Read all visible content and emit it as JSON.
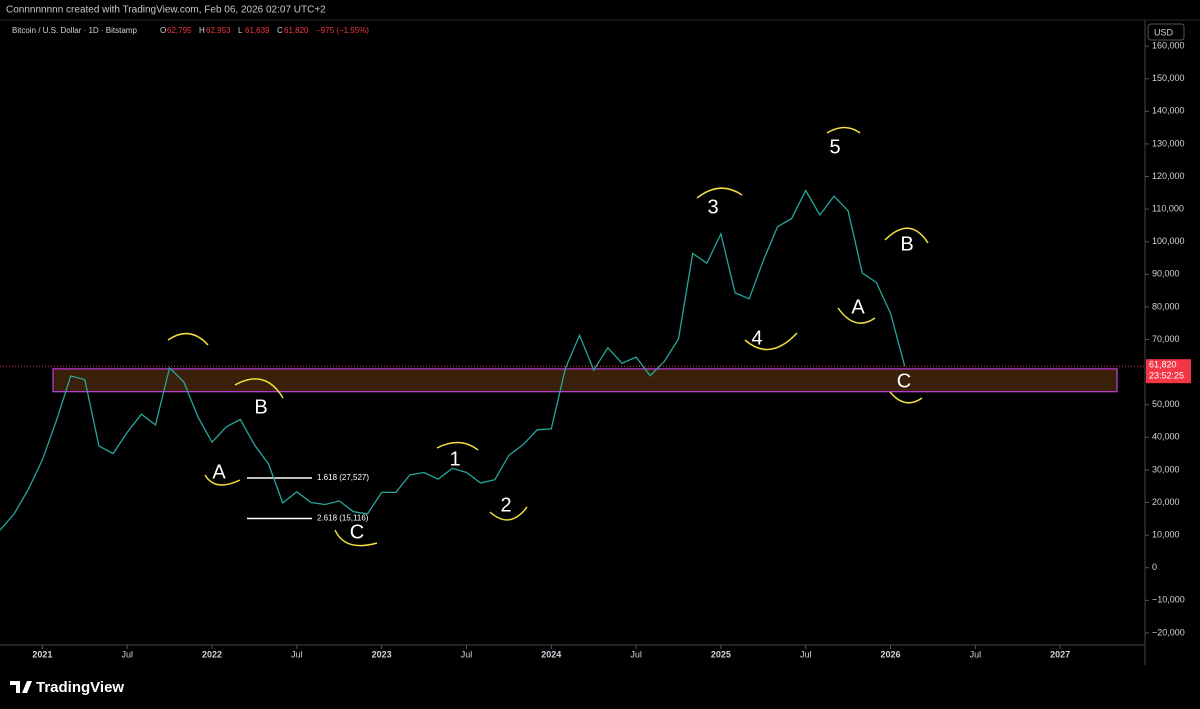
{
  "header": {
    "credit": "Connnnnnnn created with TradingView.com, Feb 06, 2026 02:07 UTC+2"
  },
  "chart_data": {
    "type": "line",
    "symbol": "Bitcoin / U.S. Dollar · 1D · Bitstamp",
    "ohlc": [
      {
        "key": "O",
        "value": "62,795"
      },
      {
        "key": "H",
        "value": "62,953"
      },
      {
        "key": "L",
        "value": "61,639"
      },
      {
        "key": "C",
        "value": "61,820"
      }
    ],
    "change": "−975 (−1.55%)",
    "currency": "USD",
    "x": [
      "2020-10",
      "2020-11",
      "2020-12",
      "2021-01",
      "2021-02",
      "2021-03",
      "2021-04",
      "2021-05",
      "2021-06",
      "2021-07",
      "2021-08",
      "2021-09",
      "2021-10",
      "2021-11",
      "2021-12",
      "2022-01",
      "2022-02",
      "2022-03",
      "2022-04",
      "2022-05",
      "2022-06",
      "2022-07",
      "2022-08",
      "2022-09",
      "2022-10",
      "2022-11",
      "2022-12",
      "2023-01",
      "2023-02",
      "2023-03",
      "2023-04",
      "2023-05",
      "2023-06",
      "2023-07",
      "2023-08",
      "2023-09",
      "2023-10",
      "2023-11",
      "2023-12",
      "2024-01",
      "2024-02",
      "2024-03",
      "2024-04",
      "2024-05",
      "2024-06",
      "2024-07",
      "2024-08",
      "2024-09",
      "2024-10",
      "2024-11",
      "2024-12",
      "2025-01",
      "2025-02",
      "2025-03",
      "2025-04",
      "2025-05",
      "2025-06",
      "2025-07",
      "2025-08",
      "2025-09",
      "2025-10",
      "2025-11",
      "2025-12",
      "2026-01",
      "2026-02"
    ],
    "series": [
      {
        "name": "Bitcoin / U.S. Dollar",
        "color": "#26a69a",
        "values": [
          11500,
          16500,
          24000,
          33100,
          45200,
          58800,
          57700,
          37300,
          35000,
          41500,
          47100,
          43800,
          61300,
          57000,
          46300,
          38500,
          43200,
          45500,
          37700,
          31800,
          19900,
          23300,
          20000,
          19400,
          20500,
          17200,
          16500,
          23100,
          23100,
          28500,
          29200,
          27200,
          30500,
          29200,
          26000,
          27000,
          34500,
          37700,
          42300,
          42600,
          61200,
          71300,
          60600,
          67500,
          62700,
          64600,
          58900,
          63300,
          70200,
          96400,
          93400,
          102400,
          84300,
          82500,
          94200,
          104600,
          107100,
          115700,
          108200,
          114000,
          109500,
          90400,
          87500,
          78000,
          61820
        ]
      }
    ],
    "last": {
      "value": 61820,
      "label": "61,820",
      "countdown": "23:52:25"
    },
    "xlim": [
      "2020-10",
      "2027-07"
    ],
    "xticks": [
      {
        "value": "2021-01",
        "label": "2021"
      },
      {
        "value": "2021-07",
        "label": "Jul"
      },
      {
        "value": "2022-01",
        "label": "2022"
      },
      {
        "value": "2022-07",
        "label": "Jul"
      },
      {
        "value": "2023-01",
        "label": "2023"
      },
      {
        "value": "2023-07",
        "label": "Jul"
      },
      {
        "value": "2024-01",
        "label": "2024"
      },
      {
        "value": "2024-07",
        "label": "Jul"
      },
      {
        "value": "2025-01",
        "label": "2025"
      },
      {
        "value": "2025-07",
        "label": "Jul"
      },
      {
        "value": "2026-01",
        "label": "2026"
      },
      {
        "value": "2026-07",
        "label": "Jul"
      },
      {
        "value": "2027-01",
        "label": "2027"
      }
    ],
    "ylim": [
      -23700,
      167400
    ],
    "yticks": [
      {
        "value": -20000,
        "label": "−20,000"
      },
      {
        "value": -10000,
        "label": "−10,000"
      },
      0,
      {
        "value": 10000,
        "label": "10,000"
      },
      {
        "value": 20000,
        "label": "20,000"
      },
      {
        "value": 30000,
        "label": "30,000"
      },
      {
        "value": 40000,
        "label": "40,000"
      },
      {
        "value": 50000,
        "label": "50,000"
      },
      {
        "value": 60000,
        "label": "60,000"
      },
      {
        "value": 70000,
        "label": "70,000"
      },
      {
        "value": 80000,
        "label": "80,000"
      },
      {
        "value": 90000,
        "label": "90,000"
      },
      {
        "value": 100000,
        "label": "100,000"
      },
      {
        "value": 110000,
        "label": "110,000"
      },
      {
        "value": 120000,
        "label": "120,000"
      },
      {
        "value": 130000,
        "label": "130,000"
      },
      {
        "value": 140000,
        "label": "140,000"
      },
      {
        "value": 150000,
        "label": "150,000"
      },
      {
        "value": 160000,
        "label": "160,000"
      }
    ],
    "zone": {
      "low": 54000,
      "high": 61000,
      "color": "#3a2008",
      "border": "#c040e0"
    },
    "fib": [
      {
        "value": 27527,
        "label": "1.618 (27,527)"
      },
      {
        "value": 15116,
        "label": "2.618 (15,116)"
      }
    ],
    "waves": [
      "A",
      "B",
      "C",
      "1",
      "2",
      "3",
      "4",
      "5",
      "A",
      "B",
      "C"
    ]
  },
  "footer": {
    "brand": "TradingView"
  }
}
